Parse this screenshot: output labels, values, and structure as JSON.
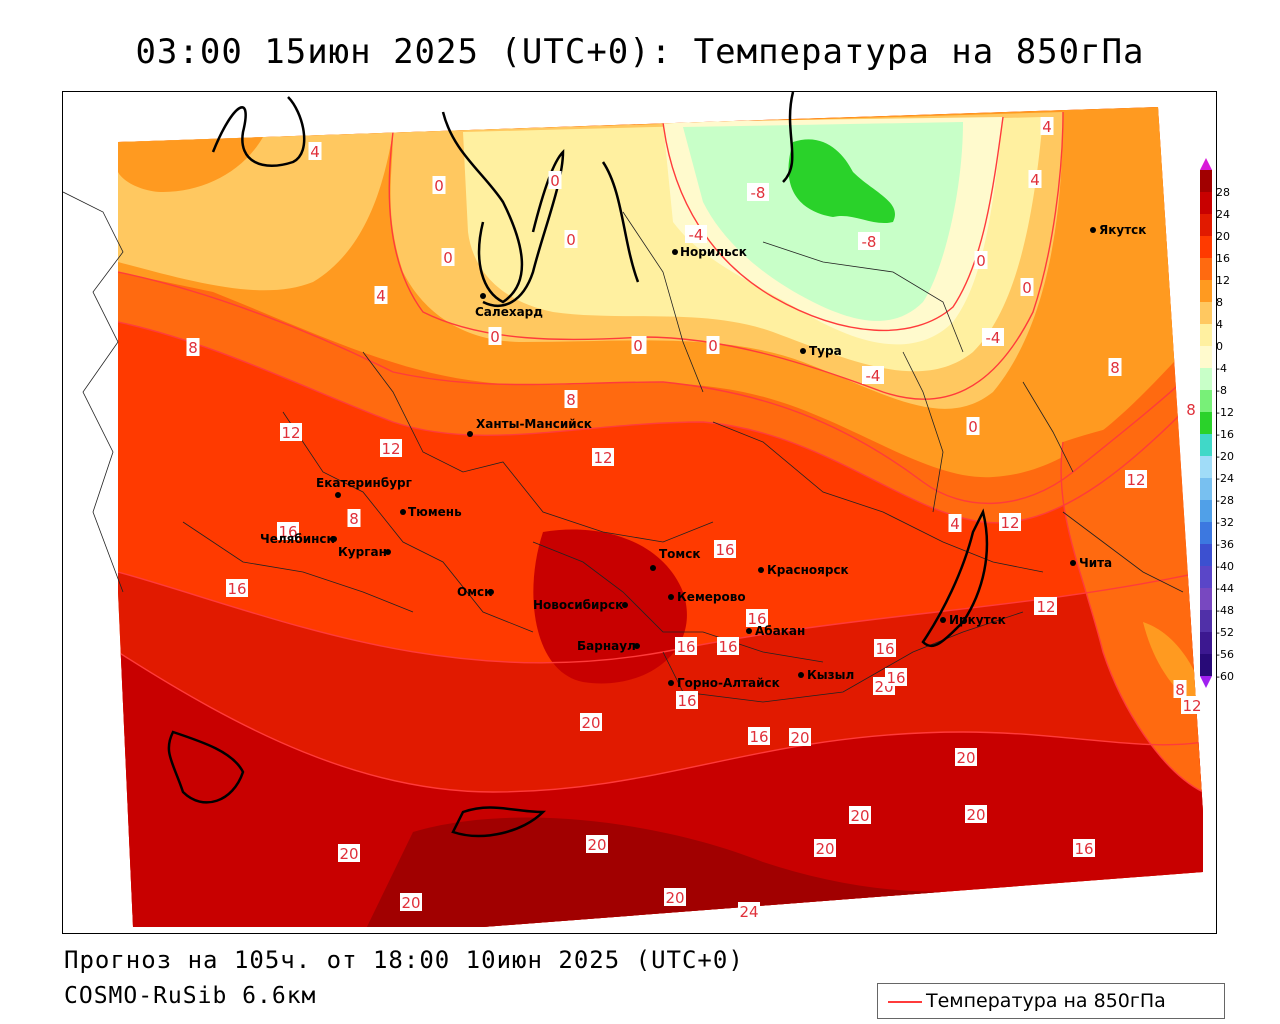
{
  "title": "03:00 15июн 2025 (UTC+0): Температура на 850гПа",
  "footer": {
    "forecast": "Прогноз на 105ч. от 18:00 10июн 2025 (UTC+0)",
    "model": "COSMO-RuSib 6.6км"
  },
  "legend": {
    "label": "Температура на 850гПа",
    "line_color": "#ff3b3b"
  },
  "colorbar": {
    "ticks": [
      "28",
      "24",
      "20",
      "16",
      "12",
      "8",
      "4",
      "0",
      "-4",
      "-8",
      "-12",
      "-16",
      "-20",
      "-24",
      "-28",
      "-32",
      "-36",
      "-40",
      "-44",
      "-48",
      "-52",
      "-56",
      "-60"
    ],
    "colors": [
      "#a10000",
      "#c80000",
      "#e11a00",
      "#ff3a00",
      "#ff6a10",
      "#ff9a20",
      "#ffc860",
      "#fff0a0",
      "#fffacd",
      "#c8ffc8",
      "#78f078",
      "#2ad22a",
      "#40d8c8",
      "#a0dcf8",
      "#78c0f0",
      "#50a0e8",
      "#3c78e0",
      "#3c50d0",
      "#5a46c8",
      "#7848c0",
      "#5030a8",
      "#3c1890",
      "#280a78"
    ],
    "top_color": "#d81ad8",
    "bottom_color": "#a020f0"
  },
  "cities": [
    {
      "name": "Салехард"
    },
    {
      "name": "Норильск"
    },
    {
      "name": "Якутск"
    },
    {
      "name": "Тура"
    },
    {
      "name": "Ханты-Мансийск"
    },
    {
      "name": "Екатеринбург"
    },
    {
      "name": "Тюмень"
    },
    {
      "name": "Челябинск"
    },
    {
      "name": "Курган"
    },
    {
      "name": "Омск"
    },
    {
      "name": "Новосибирск"
    },
    {
      "name": "Томск"
    },
    {
      "name": "Кемерово"
    },
    {
      "name": "Красноярск"
    },
    {
      "name": "Абакан"
    },
    {
      "name": "Барнаул"
    },
    {
      "name": "Горно-Алтайск"
    },
    {
      "name": "Кызыл"
    },
    {
      "name": "Иркутск"
    },
    {
      "name": "Чита"
    }
  ],
  "contour_labels": [
    "4",
    "0",
    "0",
    "0",
    "0",
    "0",
    "0",
    "-4",
    "-8",
    "-8",
    "0",
    "4",
    "0",
    "4",
    "8",
    "8",
    "4",
    "0",
    "0",
    "-4",
    "-4",
    "0",
    "8",
    "12",
    "12",
    "12",
    "8",
    "12",
    "16",
    "16",
    "8",
    "4",
    "12",
    "12",
    "16",
    "20",
    "16",
    "16",
    "16",
    "16",
    "20",
    "16",
    "20",
    "16",
    "20",
    "12",
    "12",
    "16",
    "20",
    "20",
    "20",
    "20",
    "20",
    "20",
    "20",
    "20",
    "24",
    "16",
    "8"
  ]
}
